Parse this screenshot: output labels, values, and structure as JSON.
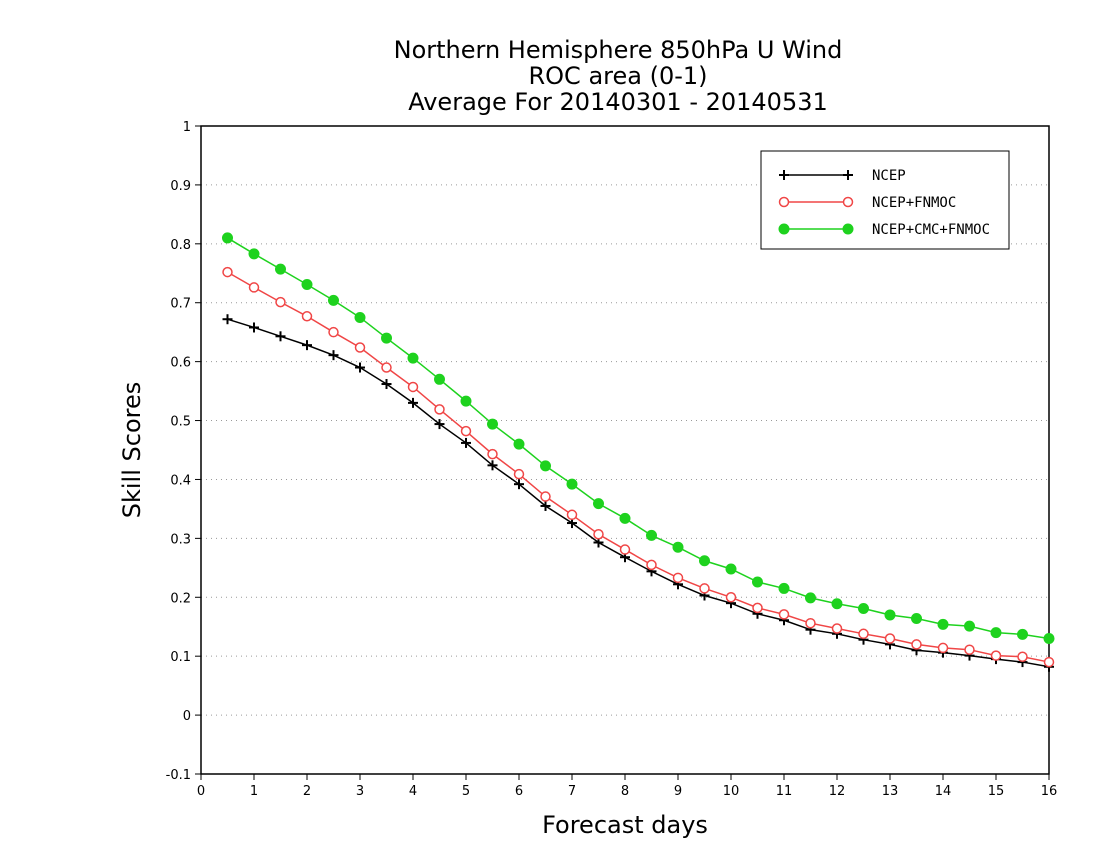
{
  "chart_data": {
    "type": "line",
    "title": [
      "Northern Hemisphere 850hPa U Wind",
      "ROC area (0-1)",
      "Average For 20140301 - 20140531"
    ],
    "xlabel": "Forecast days",
    "ylabel": "Skill Scores",
    "xlim": [
      0,
      16
    ],
    "ylim": [
      -0.1,
      1
    ],
    "xticks": [
      0,
      1,
      2,
      3,
      4,
      5,
      6,
      7,
      8,
      9,
      10,
      11,
      12,
      13,
      14,
      15,
      16
    ],
    "xtick_labels": [
      "0",
      "1",
      "2",
      "3",
      "4",
      "5",
      "6",
      "7",
      "8",
      "9",
      "10",
      "11",
      "12",
      "13",
      "14",
      "15",
      "16"
    ],
    "yticks": [
      -0.1,
      0,
      0.1,
      0.2,
      0.3,
      0.4,
      0.5,
      0.6,
      0.7,
      0.8,
      0.9,
      1
    ],
    "ytick_labels": [
      "-0.1",
      "0",
      "0.1",
      "0.2",
      "0.3",
      "0.4",
      "0.5",
      "0.6",
      "0.7",
      "0.8",
      "0.9",
      "1"
    ],
    "grid": "dotted horizontal",
    "legend_position": "top-right",
    "x": [
      0.5,
      1,
      1.5,
      2,
      2.5,
      3,
      3.5,
      4,
      4.5,
      5,
      5.5,
      6,
      6.5,
      7,
      7.5,
      8,
      8.5,
      9,
      9.5,
      10,
      10.5,
      11,
      11.5,
      12,
      12.5,
      13,
      13.5,
      14,
      14.5,
      15,
      15.5,
      16
    ],
    "series": [
      {
        "name": "NCEP",
        "color": "#000000",
        "marker": "plus",
        "values": [
          0.672,
          0.658,
          0.643,
          0.628,
          0.611,
          0.59,
          0.562,
          0.53,
          0.494,
          0.462,
          0.424,
          0.392,
          0.355,
          0.326,
          0.293,
          0.268,
          0.244,
          0.222,
          0.203,
          0.19,
          0.172,
          0.161,
          0.145,
          0.138,
          0.128,
          0.12,
          0.11,
          0.106,
          0.101,
          0.095,
          0.09,
          0.082
        ]
      },
      {
        "name": "NCEP+FNMOC",
        "color": "#f04646",
        "marker": "open-circle",
        "values": [
          0.752,
          0.726,
          0.701,
          0.677,
          0.65,
          0.624,
          0.59,
          0.557,
          0.519,
          0.482,
          0.443,
          0.409,
          0.371,
          0.34,
          0.307,
          0.281,
          0.255,
          0.233,
          0.215,
          0.2,
          0.182,
          0.171,
          0.156,
          0.147,
          0.138,
          0.13,
          0.12,
          0.114,
          0.111,
          0.101,
          0.099,
          0.09
        ]
      },
      {
        "name": "NCEP+CMC+FNMOC",
        "color": "#1ed21e",
        "marker": "filled-circle",
        "values": [
          0.81,
          0.783,
          0.757,
          0.731,
          0.704,
          0.675,
          0.64,
          0.606,
          0.57,
          0.533,
          0.494,
          0.46,
          0.423,
          0.392,
          0.359,
          0.334,
          0.305,
          0.285,
          0.262,
          0.248,
          0.226,
          0.215,
          0.199,
          0.189,
          0.181,
          0.17,
          0.164,
          0.154,
          0.151,
          0.14,
          0.137,
          0.13
        ]
      }
    ]
  }
}
